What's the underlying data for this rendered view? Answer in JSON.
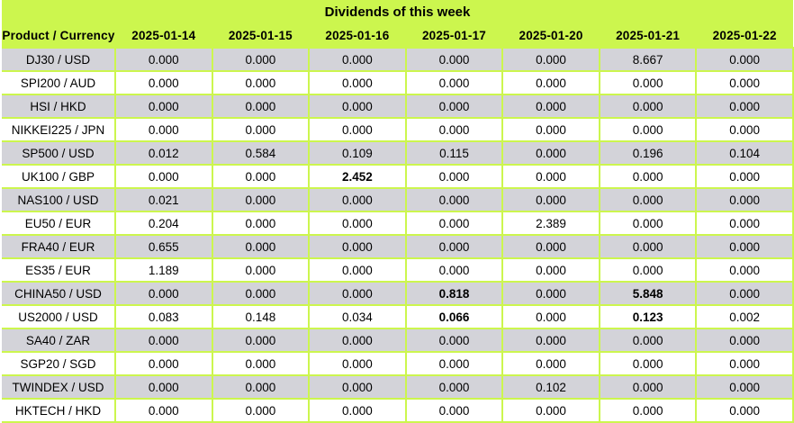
{
  "title": "Dividends of this week",
  "colors": {
    "header_green": "#ccf64e",
    "row_gray": "#d3d3d9",
    "row_white": "#ffffff",
    "text": "#000000"
  },
  "table": {
    "product_header": "Product / Currency",
    "date_headers": [
      "2025-01-14",
      "2025-01-15",
      "2025-01-16",
      "2025-01-17",
      "2025-01-20",
      "2025-01-21",
      "2025-01-22"
    ],
    "rows": [
      {
        "product": "DJ30 / USD",
        "values": [
          "0.000",
          "0.000",
          "0.000",
          "0.000",
          "0.000",
          "8.667",
          "0.000"
        ],
        "bold_cols": []
      },
      {
        "product": "SPI200 / AUD",
        "values": [
          "0.000",
          "0.000",
          "0.000",
          "0.000",
          "0.000",
          "0.000",
          "0.000"
        ],
        "bold_cols": []
      },
      {
        "product": "HSI / HKD",
        "values": [
          "0.000",
          "0.000",
          "0.000",
          "0.000",
          "0.000",
          "0.000",
          "0.000"
        ],
        "bold_cols": []
      },
      {
        "product": "NIKKEI225 / JPN",
        "values": [
          "0.000",
          "0.000",
          "0.000",
          "0.000",
          "0.000",
          "0.000",
          "0.000"
        ],
        "bold_cols": []
      },
      {
        "product": "SP500 / USD",
        "values": [
          "0.012",
          "0.584",
          "0.109",
          "0.115",
          "0.000",
          "0.196",
          "0.104"
        ],
        "bold_cols": []
      },
      {
        "product": "UK100 / GBP",
        "values": [
          "0.000",
          "0.000",
          "2.452",
          "0.000",
          "0.000",
          "0.000",
          "0.000"
        ],
        "bold_cols": [
          2
        ]
      },
      {
        "product": "NAS100 / USD",
        "values": [
          "0.021",
          "0.000",
          "0.000",
          "0.000",
          "0.000",
          "0.000",
          "0.000"
        ],
        "bold_cols": []
      },
      {
        "product": "EU50 / EUR",
        "values": [
          "0.204",
          "0.000",
          "0.000",
          "0.000",
          "2.389",
          "0.000",
          "0.000"
        ],
        "bold_cols": []
      },
      {
        "product": "FRA40 / EUR",
        "values": [
          "0.655",
          "0.000",
          "0.000",
          "0.000",
          "0.000",
          "0.000",
          "0.000"
        ],
        "bold_cols": []
      },
      {
        "product": "ES35 / EUR",
        "values": [
          "1.189",
          "0.000",
          "0.000",
          "0.000",
          "0.000",
          "0.000",
          "0.000"
        ],
        "bold_cols": []
      },
      {
        "product": "CHINA50 / USD",
        "values": [
          "0.000",
          "0.000",
          "0.000",
          "0.818",
          "0.000",
          "5.848",
          "0.000"
        ],
        "bold_cols": [
          3,
          5
        ]
      },
      {
        "product": "US2000 / USD",
        "values": [
          "0.083",
          "0.148",
          "0.034",
          "0.066",
          "0.000",
          "0.123",
          "0.002"
        ],
        "bold_cols": [
          3,
          5
        ]
      },
      {
        "product": "SA40 / ZAR",
        "values": [
          "0.000",
          "0.000",
          "0.000",
          "0.000",
          "0.000",
          "0.000",
          "0.000"
        ],
        "bold_cols": []
      },
      {
        "product": "SGP20 / SGD",
        "values": [
          "0.000",
          "0.000",
          "0.000",
          "0.000",
          "0.000",
          "0.000",
          "0.000"
        ],
        "bold_cols": []
      },
      {
        "product": "TWINDEX / USD",
        "values": [
          "0.000",
          "0.000",
          "0.000",
          "0.000",
          "0.102",
          "0.000",
          "0.000"
        ],
        "bold_cols": []
      },
      {
        "product": "HKTECH / HKD",
        "values": [
          "0.000",
          "0.000",
          "0.000",
          "0.000",
          "0.000",
          "0.000",
          "0.000"
        ],
        "bold_cols": []
      }
    ]
  }
}
